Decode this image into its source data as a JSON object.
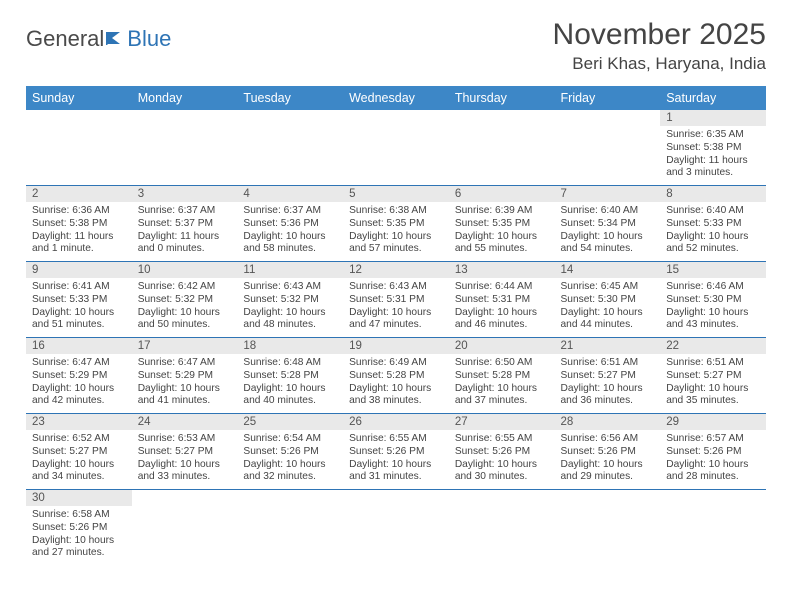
{
  "logo": {
    "text_general": "General",
    "text_blue": "Blue"
  },
  "title": "November 2025",
  "location": "Beri Khas, Haryana, India",
  "colors": {
    "header_bg": "#3d87c7",
    "header_text": "#ffffff",
    "divider": "#2e74b5",
    "daynum_bg": "#e9e9e9",
    "body_text": "#444444"
  },
  "day_names": [
    "Sunday",
    "Monday",
    "Tuesday",
    "Wednesday",
    "Thursday",
    "Friday",
    "Saturday"
  ],
  "weeks": [
    [
      null,
      null,
      null,
      null,
      null,
      null,
      {
        "n": "1",
        "sunrise": "Sunrise: 6:35 AM",
        "sunset": "Sunset: 5:38 PM",
        "daylight": "Daylight: 11 hours and 3 minutes."
      }
    ],
    [
      {
        "n": "2",
        "sunrise": "Sunrise: 6:36 AM",
        "sunset": "Sunset: 5:38 PM",
        "daylight": "Daylight: 11 hours and 1 minute."
      },
      {
        "n": "3",
        "sunrise": "Sunrise: 6:37 AM",
        "sunset": "Sunset: 5:37 PM",
        "daylight": "Daylight: 11 hours and 0 minutes."
      },
      {
        "n": "4",
        "sunrise": "Sunrise: 6:37 AM",
        "sunset": "Sunset: 5:36 PM",
        "daylight": "Daylight: 10 hours and 58 minutes."
      },
      {
        "n": "5",
        "sunrise": "Sunrise: 6:38 AM",
        "sunset": "Sunset: 5:35 PM",
        "daylight": "Daylight: 10 hours and 57 minutes."
      },
      {
        "n": "6",
        "sunrise": "Sunrise: 6:39 AM",
        "sunset": "Sunset: 5:35 PM",
        "daylight": "Daylight: 10 hours and 55 minutes."
      },
      {
        "n": "7",
        "sunrise": "Sunrise: 6:40 AM",
        "sunset": "Sunset: 5:34 PM",
        "daylight": "Daylight: 10 hours and 54 minutes."
      },
      {
        "n": "8",
        "sunrise": "Sunrise: 6:40 AM",
        "sunset": "Sunset: 5:33 PM",
        "daylight": "Daylight: 10 hours and 52 minutes."
      }
    ],
    [
      {
        "n": "9",
        "sunrise": "Sunrise: 6:41 AM",
        "sunset": "Sunset: 5:33 PM",
        "daylight": "Daylight: 10 hours and 51 minutes."
      },
      {
        "n": "10",
        "sunrise": "Sunrise: 6:42 AM",
        "sunset": "Sunset: 5:32 PM",
        "daylight": "Daylight: 10 hours and 50 minutes."
      },
      {
        "n": "11",
        "sunrise": "Sunrise: 6:43 AM",
        "sunset": "Sunset: 5:32 PM",
        "daylight": "Daylight: 10 hours and 48 minutes."
      },
      {
        "n": "12",
        "sunrise": "Sunrise: 6:43 AM",
        "sunset": "Sunset: 5:31 PM",
        "daylight": "Daylight: 10 hours and 47 minutes."
      },
      {
        "n": "13",
        "sunrise": "Sunrise: 6:44 AM",
        "sunset": "Sunset: 5:31 PM",
        "daylight": "Daylight: 10 hours and 46 minutes."
      },
      {
        "n": "14",
        "sunrise": "Sunrise: 6:45 AM",
        "sunset": "Sunset: 5:30 PM",
        "daylight": "Daylight: 10 hours and 44 minutes."
      },
      {
        "n": "15",
        "sunrise": "Sunrise: 6:46 AM",
        "sunset": "Sunset: 5:30 PM",
        "daylight": "Daylight: 10 hours and 43 minutes."
      }
    ],
    [
      {
        "n": "16",
        "sunrise": "Sunrise: 6:47 AM",
        "sunset": "Sunset: 5:29 PM",
        "daylight": "Daylight: 10 hours and 42 minutes."
      },
      {
        "n": "17",
        "sunrise": "Sunrise: 6:47 AM",
        "sunset": "Sunset: 5:29 PM",
        "daylight": "Daylight: 10 hours and 41 minutes."
      },
      {
        "n": "18",
        "sunrise": "Sunrise: 6:48 AM",
        "sunset": "Sunset: 5:28 PM",
        "daylight": "Daylight: 10 hours and 40 minutes."
      },
      {
        "n": "19",
        "sunrise": "Sunrise: 6:49 AM",
        "sunset": "Sunset: 5:28 PM",
        "daylight": "Daylight: 10 hours and 38 minutes."
      },
      {
        "n": "20",
        "sunrise": "Sunrise: 6:50 AM",
        "sunset": "Sunset: 5:28 PM",
        "daylight": "Daylight: 10 hours and 37 minutes."
      },
      {
        "n": "21",
        "sunrise": "Sunrise: 6:51 AM",
        "sunset": "Sunset: 5:27 PM",
        "daylight": "Daylight: 10 hours and 36 minutes."
      },
      {
        "n": "22",
        "sunrise": "Sunrise: 6:51 AM",
        "sunset": "Sunset: 5:27 PM",
        "daylight": "Daylight: 10 hours and 35 minutes."
      }
    ],
    [
      {
        "n": "23",
        "sunrise": "Sunrise: 6:52 AM",
        "sunset": "Sunset: 5:27 PM",
        "daylight": "Daylight: 10 hours and 34 minutes."
      },
      {
        "n": "24",
        "sunrise": "Sunrise: 6:53 AM",
        "sunset": "Sunset: 5:27 PM",
        "daylight": "Daylight: 10 hours and 33 minutes."
      },
      {
        "n": "25",
        "sunrise": "Sunrise: 6:54 AM",
        "sunset": "Sunset: 5:26 PM",
        "daylight": "Daylight: 10 hours and 32 minutes."
      },
      {
        "n": "26",
        "sunrise": "Sunrise: 6:55 AM",
        "sunset": "Sunset: 5:26 PM",
        "daylight": "Daylight: 10 hours and 31 minutes."
      },
      {
        "n": "27",
        "sunrise": "Sunrise: 6:55 AM",
        "sunset": "Sunset: 5:26 PM",
        "daylight": "Daylight: 10 hours and 30 minutes."
      },
      {
        "n": "28",
        "sunrise": "Sunrise: 6:56 AM",
        "sunset": "Sunset: 5:26 PM",
        "daylight": "Daylight: 10 hours and 29 minutes."
      },
      {
        "n": "29",
        "sunrise": "Sunrise: 6:57 AM",
        "sunset": "Sunset: 5:26 PM",
        "daylight": "Daylight: 10 hours and 28 minutes."
      }
    ],
    [
      {
        "n": "30",
        "sunrise": "Sunrise: 6:58 AM",
        "sunset": "Sunset: 5:26 PM",
        "daylight": "Daylight: 10 hours and 27 minutes."
      },
      null,
      null,
      null,
      null,
      null,
      null
    ]
  ]
}
